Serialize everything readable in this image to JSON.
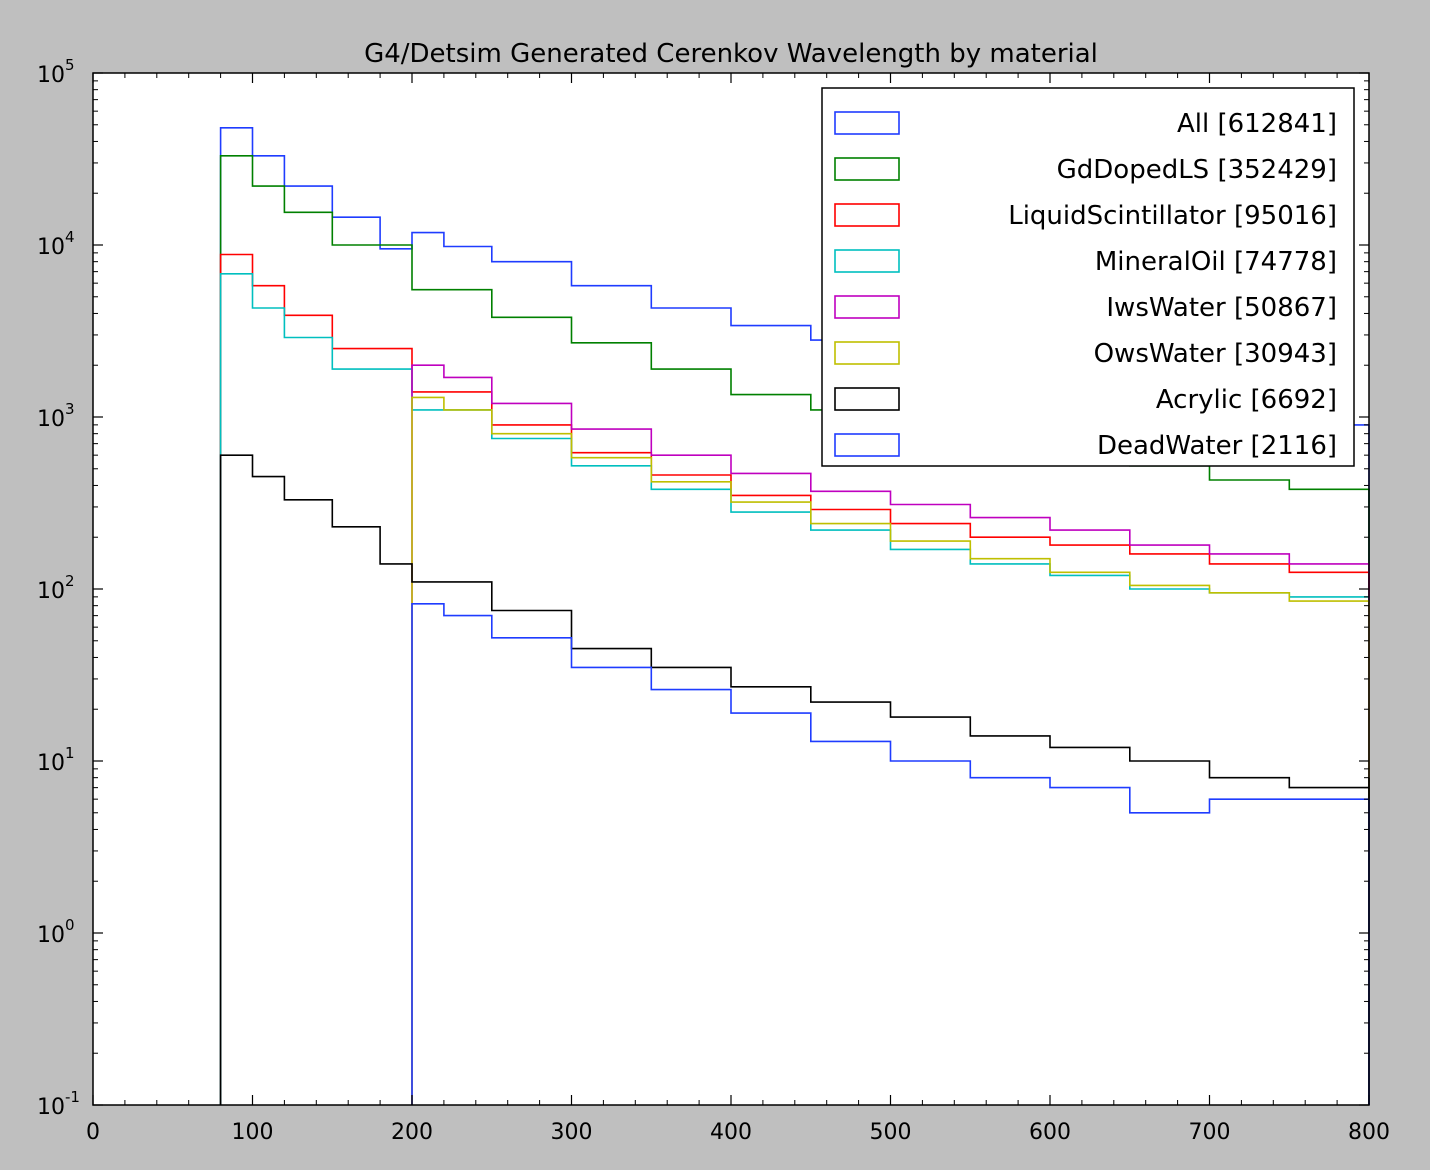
{
  "chart_data": {
    "type": "line",
    "drawstyle": "steps",
    "title": "G4/Detsim Generated Cerenkov Wavelength by material",
    "xlabel": "",
    "ylabel": "",
    "xlim": [
      0,
      800
    ],
    "ylim": [
      0.1,
      100000
    ],
    "yscale": "log",
    "grid": false,
    "legend_position": "top-right",
    "x_ticks": [
      "0",
      "100",
      "200",
      "300",
      "400",
      "500",
      "600",
      "700",
      "800"
    ],
    "y_ticks": [
      {
        "base": "10",
        "exp": "-1"
      },
      {
        "base": "10",
        "exp": "0"
      },
      {
        "base": "10",
        "exp": "1"
      },
      {
        "base": "10",
        "exp": "2"
      },
      {
        "base": "10",
        "exp": "3"
      },
      {
        "base": "10",
        "exp": "4"
      },
      {
        "base": "10",
        "exp": "5"
      }
    ],
    "series": [
      {
        "name": "All [612841]",
        "color": "#1f3cff",
        "x": [
          80,
          100,
          120,
          150,
          180,
          200,
          220,
          250,
          300,
          350,
          400,
          450,
          500,
          550,
          600,
          650,
          700,
          750,
          800
        ],
        "values": [
          48000,
          33000,
          22000,
          14500,
          9500,
          11800,
          9800,
          8000,
          5800,
          4300,
          3400,
          2800,
          2200,
          1800,
          1500,
          1300,
          1150,
          900,
          750
        ]
      },
      {
        "name": "GdDopedLS  [352429]",
        "color": "#008000",
        "x": [
          80,
          100,
          120,
          150,
          200,
          250,
          300,
          350,
          400,
          450,
          500,
          550,
          600,
          650,
          700,
          750,
          800
        ],
        "values": [
          33000,
          22000,
          15500,
          10000,
          5500,
          3800,
          2700,
          1900,
          1350,
          1100,
          950,
          800,
          650,
          520,
          430,
          380,
          350
        ]
      },
      {
        "name": "LiquidScintillator  [95016]",
        "color": "#ff0000",
        "x": [
          80,
          100,
          120,
          150,
          200,
          250,
          300,
          350,
          400,
          450,
          500,
          550,
          600,
          650,
          700,
          750,
          800
        ],
        "values": [
          8800,
          5800,
          3900,
          2500,
          1400,
          900,
          620,
          460,
          350,
          290,
          240,
          200,
          180,
          160,
          140,
          125,
          110
        ]
      },
      {
        "name": "MineralOil  [74778]",
        "color": "#00bfbf",
        "x": [
          80,
          100,
          120,
          150,
          200,
          250,
          300,
          350,
          400,
          450,
          500,
          550,
          600,
          650,
          700,
          750,
          800
        ],
        "values": [
          6800,
          4300,
          2900,
          1900,
          1100,
          750,
          520,
          380,
          280,
          220,
          170,
          140,
          120,
          100,
          95,
          90,
          85
        ]
      },
      {
        "name": "IwsWater  [50867]",
        "color": "#bf00bf",
        "x": [
          200,
          220,
          250,
          300,
          350,
          400,
          450,
          500,
          550,
          600,
          650,
          700,
          750,
          800
        ],
        "values": [
          2000,
          1700,
          1200,
          850,
          600,
          470,
          370,
          310,
          260,
          220,
          180,
          160,
          140,
          125
        ]
      },
      {
        "name": "OwsWater  [30943]",
        "color": "#bfbf00",
        "x": [
          200,
          220,
          250,
          300,
          350,
          400,
          450,
          500,
          550,
          600,
          650,
          700,
          750,
          800
        ],
        "values": [
          1300,
          1100,
          800,
          580,
          420,
          320,
          240,
          190,
          150,
          125,
          105,
          95,
          85,
          75
        ]
      },
      {
        "name": "Acrylic  [6692]",
        "color": "#000000",
        "x": [
          80,
          100,
          120,
          150,
          180,
          200,
          250,
          300,
          350,
          400,
          450,
          500,
          550,
          600,
          650,
          700,
          750,
          800
        ],
        "values": [
          600,
          450,
          330,
          230,
          140,
          110,
          75,
          45,
          35,
          27,
          22,
          18,
          14,
          12,
          10,
          8,
          7,
          8
        ]
      },
      {
        "name": "DeadWater  [2116]",
        "color": "#1f3cff",
        "x": [
          200,
          220,
          250,
          300,
          350,
          400,
          450,
          500,
          550,
          600,
          650,
          700,
          750,
          800
        ],
        "values": [
          82,
          70,
          52,
          35,
          26,
          19,
          13,
          10,
          8,
          7,
          5,
          6,
          6,
          5
        ]
      }
    ]
  }
}
